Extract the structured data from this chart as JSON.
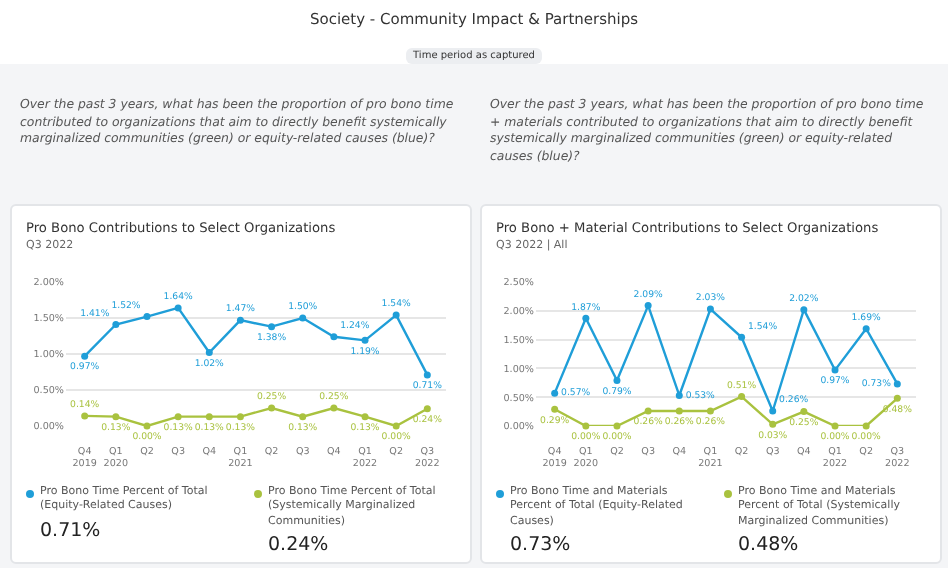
{
  "chart_data": [
    {
      "type": "line",
      "title": "Pro Bono Contributions to Select Organizations",
      "subtitle": "Q3 2022",
      "annotations": [
        "Society - Community Impact & Partnerships",
        "Time period as captured",
        "Over the past 3 years, what has been the proportion of pro bono time contributed to organizations that aim to directly benefit systemically marginalized communities (green) or equity-related causes (blue)?",
        "0.71%",
        "0.24%"
      ],
      "categories": [
        "Q4\n2019",
        "Q1\n2020",
        "Q2",
        "Q3",
        "Q4",
        "Q1\n2021",
        "Q2",
        "Q3",
        "Q4",
        "Q1\n2022",
        "Q2",
        "Q3\n2022"
      ],
      "series": [
        {
          "name": "Pro Bono Time Percent of Total (Equity-Related Causes)",
          "color": "#1f9ed8",
          "values": [
            0.97,
            1.41,
            1.52,
            1.64,
            1.02,
            1.47,
            1.38,
            1.5,
            1.24,
            1.19,
            1.54,
            0.71
          ],
          "value_labels": [
            "0.97%",
            "1.41%",
            "1.52%",
            "1.64%",
            "1.02%",
            "1.47%",
            "1.38%",
            "1.50%",
            "1.24%",
            "1.19%",
            "1.54%",
            "0.71%"
          ]
        },
        {
          "name": "Pro Bono Time Percent of Total (Systemically Marginalized Communities)",
          "color": "#a9c23f",
          "values": [
            0.14,
            0.13,
            0.0,
            0.13,
            0.13,
            0.13,
            0.25,
            0.13,
            0.25,
            0.13,
            0.0,
            0.24
          ],
          "value_labels": [
            "0.14%",
            "0.13%",
            "0.00%",
            "0.13%",
            "0.13%",
            "0.13%",
            "0.25%",
            "0.13%",
            "0.25%",
            "0.13%",
            "0.00%",
            "0.24%"
          ]
        }
      ],
      "ylim": [
        0,
        2
      ],
      "yticks": [
        {
          "value": 0,
          "label": "0.00%"
        },
        {
          "value": 0.5,
          "label": "0.50%"
        },
        {
          "value": 1,
          "label": "1.00%"
        },
        {
          "value": 1.5,
          "label": "1.50%"
        },
        {
          "value": 2,
          "label": "2.00%"
        }
      ],
      "grid": "y",
      "legend": "bottom",
      "marker": "circle",
      "line_style": "solid"
    },
    {
      "type": "line",
      "title": "Pro Bono + Material Contributions to Select Organizations",
      "subtitle": "Q3 2022 | All",
      "annotations": [
        "Over the past 3 years, what has been the proportion of pro bono time + materials contributed to organizations that aim to directly benefit systemically marginalized communities (green) or equity-related causes (blue)?",
        "0.73%",
        "0.48%"
      ],
      "categories": [
        "Q4\n2019",
        "Q1\n2020",
        "Q2",
        "Q3",
        "Q4",
        "Q1\n2021",
        "Q2",
        "Q3",
        "Q4",
        "Q1\n2022",
        "Q2",
        "Q3\n2022"
      ],
      "series": [
        {
          "name": "Pro Bono Time and Materials Percent of Total (Equity-Related Causes)",
          "color": "#1f9ed8",
          "values": [
            0.57,
            1.87,
            0.79,
            2.09,
            0.53,
            2.03,
            1.54,
            0.26,
            2.02,
            0.97,
            1.69,
            0.73
          ],
          "value_labels": [
            "0.57%",
            "1.87%",
            "0.79%",
            "2.09%",
            "0.53%",
            "2.03%",
            "1.54%",
            "0.26%",
            "2.02%",
            "0.97%",
            "1.69%",
            "0.73%"
          ]
        },
        {
          "name": "Pro Bono Time and Materials Percent of Total (Systemically Marginalized Communities)",
          "color": "#a9c23f",
          "values": [
            0.29,
            0.0,
            0.0,
            0.26,
            0.26,
            0.26,
            0.51,
            0.03,
            0.25,
            0.0,
            0.0,
            0.48
          ],
          "value_labels": [
            "0.29%",
            "0.00%",
            "0.00%",
            "0.26%",
            "0.26%",
            "0.26%",
            "0.51%",
            "0.03%",
            "0.25%",
            "0.00%",
            "0.00%",
            "0.48%"
          ]
        }
      ],
      "ylim": [
        0,
        2.5
      ],
      "yticks": [
        {
          "value": 0,
          "label": "0.00%"
        },
        {
          "value": 0.5,
          "label": "0.50%"
        },
        {
          "value": 1,
          "label": "1.00%"
        },
        {
          "value": 1.5,
          "label": "1.50%"
        },
        {
          "value": 2,
          "label": "2.00%"
        },
        {
          "value": 2.5,
          "label": "2.50%"
        }
      ],
      "grid": "y",
      "legend": "bottom",
      "marker": "circle",
      "line_style": "solid"
    }
  ]
}
